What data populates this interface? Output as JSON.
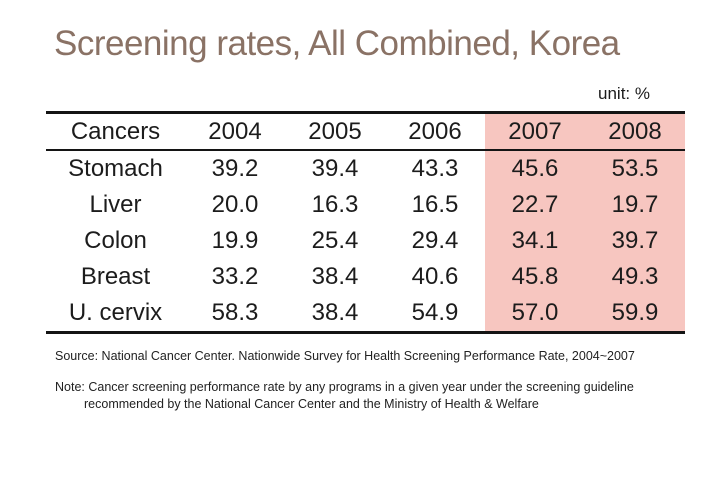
{
  "slide": {
    "title": "Screening rates, All Combined, Korea",
    "unit_label": "unit: %"
  },
  "table": {
    "header": [
      "Cancers",
      "2004",
      "2005",
      "2006",
      "2007",
      "2008"
    ],
    "rows": [
      {
        "label": "Stomach",
        "values": [
          "39.2",
          "39.4",
          "43.3",
          "45.6",
          "53.5"
        ]
      },
      {
        "label": "Liver",
        "values": [
          "20.0",
          "16.3",
          "16.5",
          "22.7",
          "19.7"
        ]
      },
      {
        "label": "Colon",
        "values": [
          "19.9",
          "25.4",
          "29.4",
          "34.1",
          "39.7"
        ]
      },
      {
        "label": "Breast",
        "values": [
          "33.2",
          "38.4",
          "40.6",
          "45.8",
          "49.3"
        ]
      },
      {
        "label": "U. cervix",
        "values": [
          "58.3",
          "38.4",
          "54.9",
          "57.0",
          "59.9"
        ]
      }
    ],
    "highlighted_columns": [
      "2007",
      "2008"
    ]
  },
  "footnotes": {
    "source": "Source: National Cancer Center. Nationwide Survey for Health Screening Performance Rate, 2004~2007",
    "note_line1": "Note: Cancer screening performance rate by any programs in a given year under the screening guideline",
    "note_line2": "recommended by the National Cancer Center and the Ministry of Health & Welfare"
  },
  "colors": {
    "title_text": "#8a7265",
    "highlight_background": "#f7c6c0",
    "body_text": "#1c1c1c",
    "table_border": "#141414"
  },
  "chart_data": {
    "type": "table",
    "title": "Screening rates, All Combined, Korea",
    "unit": "%",
    "categories": [
      "2004",
      "2005",
      "2006",
      "2007",
      "2008"
    ],
    "series": [
      {
        "name": "Stomach",
        "values": [
          39.2,
          39.4,
          43.3,
          45.6,
          53.5
        ]
      },
      {
        "name": "Liver",
        "values": [
          20.0,
          16.3,
          16.5,
          22.7,
          19.7
        ]
      },
      {
        "name": "Colon",
        "values": [
          19.9,
          25.4,
          29.4,
          34.1,
          39.7
        ]
      },
      {
        "name": "Breast",
        "values": [
          33.2,
          38.4,
          40.6,
          45.8,
          49.3
        ]
      },
      {
        "name": "U. cervix",
        "values": [
          58.3,
          38.4,
          54.9,
          57.0,
          59.9
        ]
      }
    ],
    "highlighted_categories": [
      "2007",
      "2008"
    ]
  }
}
